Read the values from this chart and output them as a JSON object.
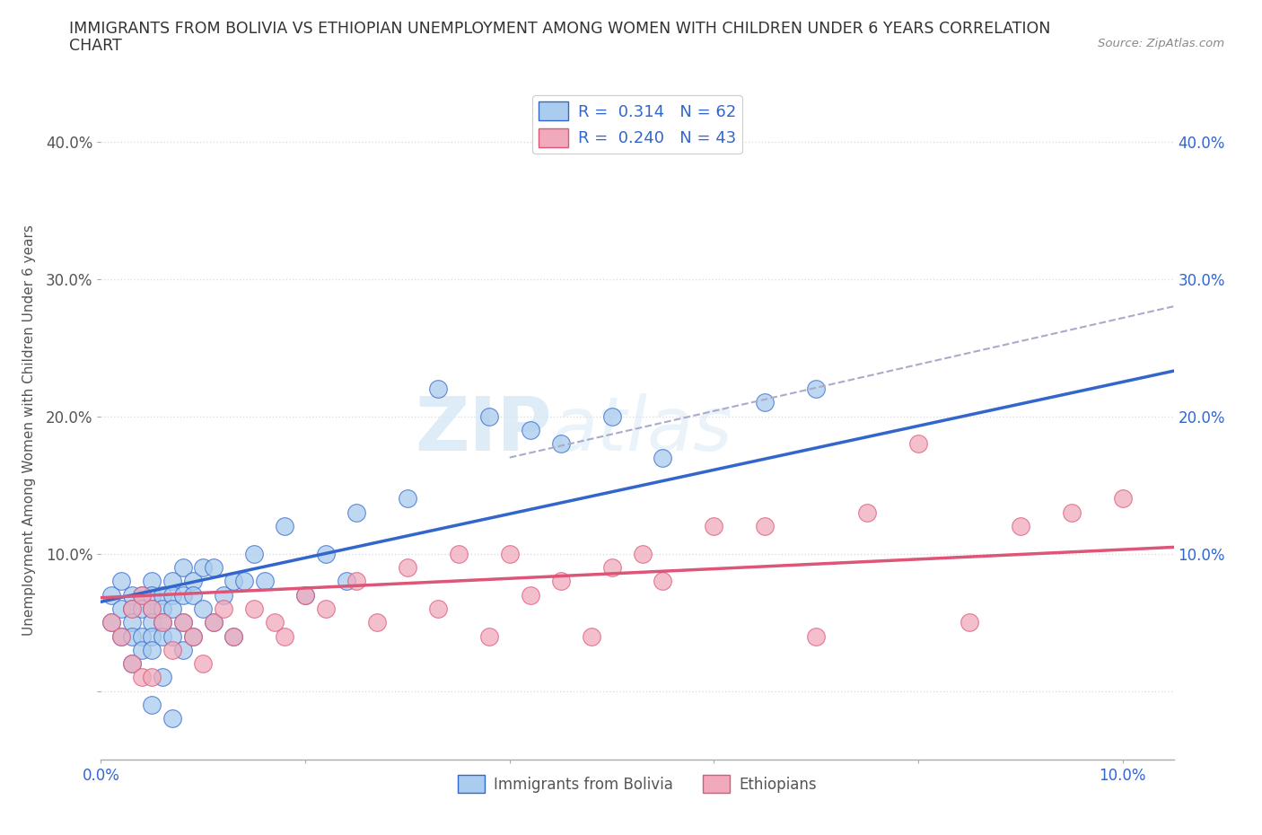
{
  "title_line1": "IMMIGRANTS FROM BOLIVIA VS ETHIOPIAN UNEMPLOYMENT AMONG WOMEN WITH CHILDREN UNDER 6 YEARS CORRELATION",
  "title_line2": "CHART",
  "source": "Source: ZipAtlas.com",
  "ylabel": "Unemployment Among Women with Children Under 6 years",
  "xlim": [
    0.0,
    0.105
  ],
  "ylim": [
    -0.05,
    0.43
  ],
  "plot_ylim": [
    -0.05,
    0.43
  ],
  "xticks": [
    0.0,
    0.02,
    0.04,
    0.06,
    0.08,
    0.1
  ],
  "yticks": [
    0.0,
    0.1,
    0.2,
    0.3,
    0.4
  ],
  "xticklabels_show": [
    "0.0%",
    "",
    "",
    "",
    "",
    "10.0%"
  ],
  "yticklabels": [
    "",
    "10.0%",
    "20.0%",
    "30.0%",
    "40.0%"
  ],
  "bolivia_color": "#aaccee",
  "ethiopia_color": "#f0aabb",
  "bolivia_line_color": "#3366cc",
  "ethiopia_line_color": "#dd5577",
  "dashed_line_color": "#aaaacc",
  "r_bolivia": "0.314",
  "n_bolivia": "62",
  "r_ethiopia": "0.240",
  "n_ethiopia": "43",
  "watermark_zip": "ZIP",
  "watermark_atlas": "atlas",
  "background_color": "#ffffff",
  "grid_color": "#dddddd",
  "bolivia_scatter_x": [
    0.001,
    0.001,
    0.002,
    0.002,
    0.002,
    0.003,
    0.003,
    0.003,
    0.003,
    0.003,
    0.004,
    0.004,
    0.004,
    0.004,
    0.005,
    0.005,
    0.005,
    0.005,
    0.005,
    0.005,
    0.005,
    0.006,
    0.006,
    0.006,
    0.006,
    0.006,
    0.007,
    0.007,
    0.007,
    0.007,
    0.007,
    0.008,
    0.008,
    0.008,
    0.008,
    0.009,
    0.009,
    0.009,
    0.01,
    0.01,
    0.011,
    0.011,
    0.012,
    0.013,
    0.013,
    0.014,
    0.015,
    0.016,
    0.018,
    0.02,
    0.022,
    0.024,
    0.025,
    0.03,
    0.033,
    0.038,
    0.042,
    0.045,
    0.05,
    0.055,
    0.065,
    0.07
  ],
  "bolivia_scatter_y": [
    0.07,
    0.05,
    0.08,
    0.06,
    0.04,
    0.07,
    0.06,
    0.05,
    0.04,
    0.02,
    0.07,
    0.06,
    0.04,
    0.03,
    0.08,
    0.07,
    0.06,
    0.05,
    0.04,
    0.03,
    -0.01,
    0.07,
    0.06,
    0.05,
    0.04,
    0.01,
    0.08,
    0.07,
    0.06,
    0.04,
    -0.02,
    0.09,
    0.07,
    0.05,
    0.03,
    0.08,
    0.07,
    0.04,
    0.09,
    0.06,
    0.09,
    0.05,
    0.07,
    0.08,
    0.04,
    0.08,
    0.1,
    0.08,
    0.12,
    0.07,
    0.1,
    0.08,
    0.13,
    0.14,
    0.22,
    0.2,
    0.19,
    0.18,
    0.2,
    0.17,
    0.21,
    0.22
  ],
  "ethiopia_scatter_x": [
    0.001,
    0.002,
    0.003,
    0.003,
    0.004,
    0.004,
    0.005,
    0.005,
    0.006,
    0.007,
    0.008,
    0.009,
    0.01,
    0.011,
    0.012,
    0.013,
    0.015,
    0.017,
    0.018,
    0.02,
    0.022,
    0.025,
    0.027,
    0.03,
    0.033,
    0.035,
    0.038,
    0.04,
    0.042,
    0.045,
    0.048,
    0.05,
    0.053,
    0.055,
    0.06,
    0.065,
    0.07,
    0.075,
    0.08,
    0.085,
    0.09,
    0.095,
    0.1
  ],
  "ethiopia_scatter_y": [
    0.05,
    0.04,
    0.06,
    0.02,
    0.07,
    0.01,
    0.06,
    0.01,
    0.05,
    0.03,
    0.05,
    0.04,
    0.02,
    0.05,
    0.06,
    0.04,
    0.06,
    0.05,
    0.04,
    0.07,
    0.06,
    0.08,
    0.05,
    0.09,
    0.06,
    0.1,
    0.04,
    0.1,
    0.07,
    0.08,
    0.04,
    0.09,
    0.1,
    0.08,
    0.12,
    0.12,
    0.04,
    0.13,
    0.18,
    0.05,
    0.12,
    0.13,
    0.14
  ]
}
